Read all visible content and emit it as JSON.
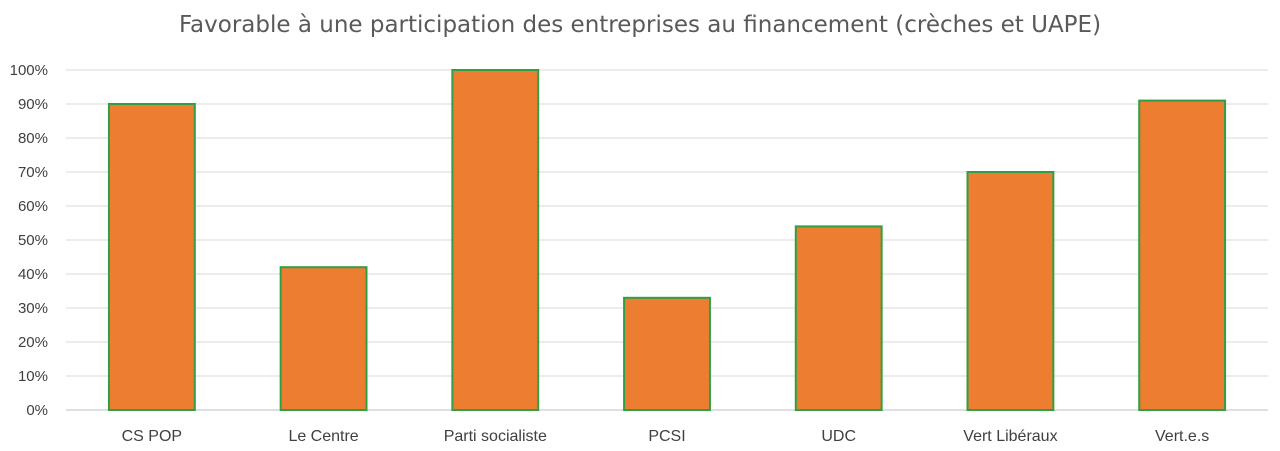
{
  "chart_data": {
    "type": "bar",
    "title": "Favorable à une participation des entreprises au financement (crèches et UAPE)",
    "xlabel": "",
    "ylabel": "",
    "categories": [
      "CS POP",
      "Le Centre",
      "Parti socialiste",
      "PCSI",
      "UDC",
      "Vert Libéraux",
      "Vert.e.s"
    ],
    "values": [
      0.9,
      0.42,
      1.0,
      0.33,
      0.54,
      0.7,
      0.91
    ],
    "ylim": [
      0,
      1
    ],
    "yticks": [
      0,
      0.1,
      0.2,
      0.3,
      0.4,
      0.5,
      0.6,
      0.7,
      0.8,
      0.9,
      1.0
    ],
    "ytick_labels": [
      "0%",
      "10%",
      "20%",
      "30%",
      "40%",
      "50%",
      "60%",
      "70%",
      "80%",
      "90%",
      "100%"
    ],
    "grid": true,
    "legend": "none",
    "colors": {
      "bar_fill": "#ED7D31",
      "bar_border": "#2EA043",
      "grid": "#D9D9D9",
      "axis": "#BFBFBF",
      "text": "#404040",
      "title": "#595959"
    }
  }
}
